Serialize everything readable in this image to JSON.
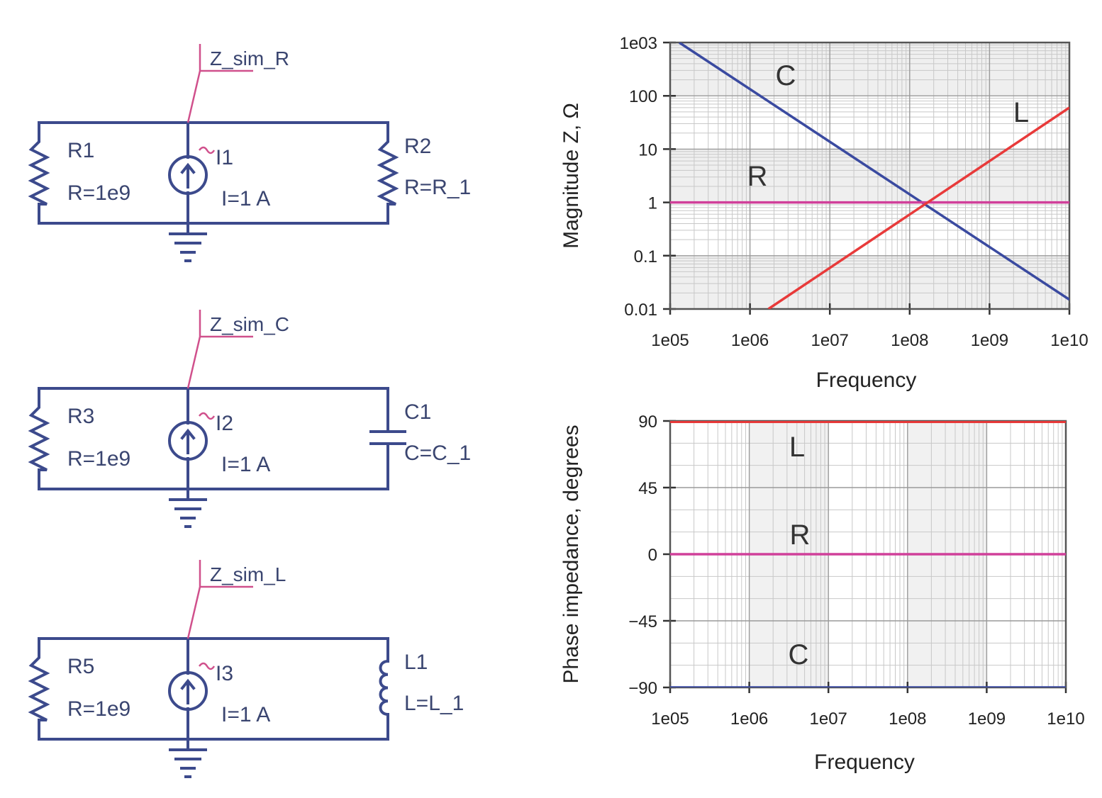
{
  "circuits": [
    {
      "probe": "Z_sim_R",
      "left": {
        "name": "R1",
        "value": "R=1e9"
      },
      "source": {
        "name": "I1",
        "value": "I=1 A"
      },
      "right": {
        "name": "R2",
        "value": "R=R_1",
        "kind": "resistor"
      }
    },
    {
      "probe": "Z_sim_C",
      "left": {
        "name": "R3",
        "value": "R=1e9"
      },
      "source": {
        "name": "I2",
        "value": "I=1 A"
      },
      "right": {
        "name": "C1",
        "value": "C=C_1",
        "kind": "capacitor"
      }
    },
    {
      "probe": "Z_sim_L",
      "left": {
        "name": "R5",
        "value": "R=1e9"
      },
      "source": {
        "name": "I3",
        "value": "I=1 A"
      },
      "right": {
        "name": "L1",
        "value": "L=L_1",
        "kind": "inductor"
      }
    }
  ],
  "colors": {
    "wire": "#3c4a8c",
    "probe": "#d0508c",
    "R": "#d0409a",
    "L": "#e83a3a",
    "C": "#3a4aa0"
  },
  "chart_data": [
    {
      "type": "line",
      "xlabel": "Frequency",
      "ylabel": "Magnitude Z, Ω",
      "x_scale": "log",
      "y_scale": "log",
      "xlim": [
        100000,
        10000000000
      ],
      "ylim": [
        0.01,
        1000
      ],
      "x_ticks": [
        "1e05",
        "1e06",
        "1e07",
        "1e08",
        "1e09",
        "1e10"
      ],
      "y_ticks": [
        "0.01",
        "0.1",
        "1",
        "10",
        "100",
        "1e03"
      ],
      "grid": true,
      "series": [
        {
          "name": "C",
          "x": [
            130000,
            10000000000
          ],
          "y": [
            1000,
            0.015
          ]
        },
        {
          "name": "R",
          "x": [
            100000,
            10000000000
          ],
          "y": [
            1,
            1
          ]
        },
        {
          "name": "L",
          "x": [
            1700000,
            10000000000
          ],
          "y": [
            0.01,
            60
          ]
        }
      ]
    },
    {
      "type": "line",
      "xlabel": "Frequency",
      "ylabel": "Phase impedance, degrees",
      "x_scale": "log",
      "xlim": [
        100000,
        10000000000
      ],
      "ylim": [
        -90,
        90
      ],
      "x_ticks": [
        "1e05",
        "1e06",
        "1e07",
        "1e08",
        "1e09",
        "1e10"
      ],
      "y_ticks": [
        "-90",
        "-45",
        "0",
        "45",
        "90"
      ],
      "grid": true,
      "series": [
        {
          "name": "L",
          "x": [
            100000,
            10000000000
          ],
          "y": [
            90,
            90
          ]
        },
        {
          "name": "R",
          "x": [
            100000,
            10000000000
          ],
          "y": [
            0,
            0
          ]
        },
        {
          "name": "C",
          "x": [
            100000,
            10000000000
          ],
          "y": [
            -90,
            -90
          ]
        }
      ]
    }
  ]
}
